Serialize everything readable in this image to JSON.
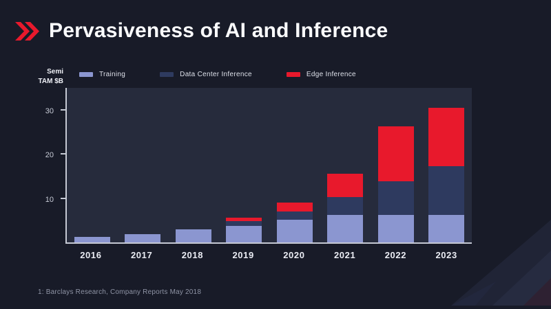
{
  "slide": {
    "title": "Pervasiveness of AI and Inference",
    "footnote": "1: Barclays Research, Company Reports May 2018"
  },
  "axis_label": {
    "line1": "Semi",
    "line2": "TAM $B"
  },
  "legend": [
    {
      "label": "Training",
      "color": "#8b96d0"
    },
    {
      "label": "Data Center Inference",
      "color": "#2e3a5f"
    },
    {
      "label": "Edge Inference",
      "color": "#e8192c"
    }
  ],
  "chart_data": {
    "type": "bar",
    "stacked": true,
    "title": "Pervasiveness of AI and Inference",
    "categories": [
      "2016",
      "2017",
      "2018",
      "2019",
      "2020",
      "2021",
      "2022",
      "2023"
    ],
    "series": [
      {
        "name": "Training",
        "color": "#8b96d0",
        "values": [
          1.2,
          1.8,
          3.0,
          3.8,
          5.2,
          6.3,
          6.3,
          6.3
        ]
      },
      {
        "name": "Data Center Inference",
        "color": "#2e3a5f",
        "values": [
          0,
          0,
          0,
          1.0,
          1.8,
          4.0,
          7.5,
          11.0
        ]
      },
      {
        "name": "Edge Inference",
        "color": "#e8192c",
        "values": [
          0,
          0,
          0,
          0.8,
          2.0,
          5.2,
          12.5,
          13.2
        ]
      }
    ],
    "xlabel": "",
    "ylabel": "Semi TAM $B",
    "yticks": [
      10,
      20,
      30
    ],
    "ylim": [
      0,
      35
    ],
    "grid": false,
    "legend_position": "top"
  },
  "colors": {
    "background": "#181b28",
    "panel": "#262b3c",
    "accent_red": "#e8192c",
    "axis": "#c6cad4"
  }
}
